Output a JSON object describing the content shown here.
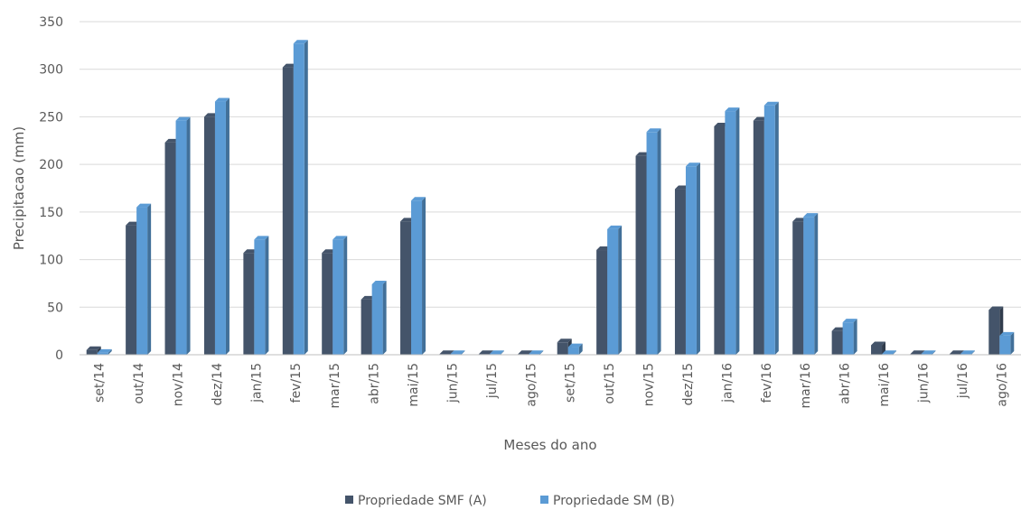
{
  "chart_data": {
    "type": "bar",
    "title": "",
    "xlabel": "Meses do ano",
    "ylabel": "Precipitacao (mm)",
    "ylim": [
      0,
      350
    ],
    "yticks": [
      0,
      50,
      100,
      150,
      200,
      250,
      300,
      350
    ],
    "grid": true,
    "legend_position": "bottom",
    "categories": [
      "set/14",
      "out/14",
      "nov/14",
      "dez/14",
      "jan/15",
      "fev/15",
      "mar/15",
      "abr/15",
      "mai/15",
      "jun/15",
      "jul/15",
      "ago/15",
      "set/15",
      "out/15",
      "nov/15",
      "dez/15",
      "jan/16",
      "fev/16",
      "mar/16",
      "abr/16",
      "mai/16",
      "jun/16",
      "jul/16",
      "ago/16"
    ],
    "series": [
      {
        "name": "Propriedade SMF (A)",
        "color": "#44546a",
        "values": [
          5,
          136,
          223,
          250,
          107,
          302,
          107,
          58,
          140,
          0,
          0,
          0,
          13,
          110,
          209,
          174,
          240,
          246,
          140,
          25,
          10,
          0,
          0,
          47
        ]
      },
      {
        "name": "Propriedade SM (B)",
        "color": "#5b9bd5",
        "values": [
          2,
          155,
          246,
          266,
          121,
          327,
          121,
          74,
          162,
          0,
          0,
          0,
          8,
          132,
          234,
          198,
          256,
          262,
          145,
          34,
          0,
          0,
          0,
          20
        ]
      }
    ]
  }
}
